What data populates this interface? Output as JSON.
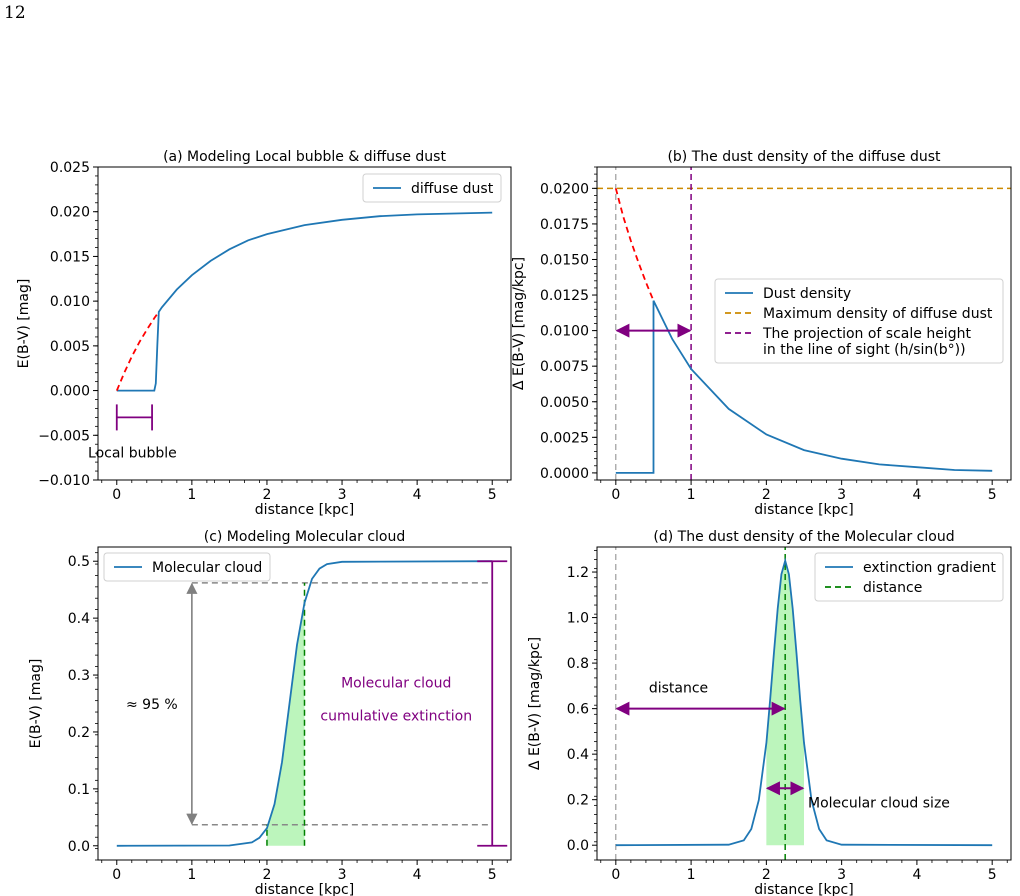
{
  "page_number": "12",
  "chart_data": [
    {
      "type": "line",
      "title": "(a) Modeling Local bubble & diffuse dust",
      "xlabel": "distance [kpc]",
      "ylabel": "E(B-V) [mag]",
      "xlim": [
        -0.25,
        5.25
      ],
      "ylim": [
        -0.01,
        0.025
      ],
      "xticks": [
        0,
        1,
        2,
        3,
        4,
        5
      ],
      "xtick_labels": [
        "0",
        "1",
        "2",
        "3",
        "4",
        "5"
      ],
      "yticks": [
        -0.01,
        -0.005,
        0.0,
        0.005,
        0.01,
        0.015,
        0.02,
        0.025
      ],
      "ytick_labels": [
        "−0.010",
        "−0.005",
        "0.000",
        "0.005",
        "0.010",
        "0.015",
        "0.020",
        "0.025"
      ],
      "legend": {
        "position": "top-right",
        "entries": [
          {
            "label": "diffuse dust",
            "color": "#1f77b4",
            "style": "solid"
          }
        ]
      },
      "series": [
        {
          "name": "diffuse dust",
          "color": "#1f77b4",
          "style": "solid",
          "x": [
            0,
            0.5,
            0.52,
            0.54,
            0.56,
            0.6,
            0.8,
            1.0,
            1.25,
            1.5,
            1.75,
            2.0,
            2.5,
            3.0,
            3.5,
            4.0,
            4.5,
            5.0
          ],
          "y": [
            0,
            0,
            0.0008,
            0.005,
            0.0088,
            0.0093,
            0.0113,
            0.0129,
            0.0145,
            0.0158,
            0.0168,
            0.0175,
            0.0185,
            0.0191,
            0.0195,
            0.0197,
            0.0198,
            0.0199
          ]
        },
        {
          "color": "#ff0000",
          "style": "dashed",
          "x": [
            0,
            0.1,
            0.2,
            0.3,
            0.4,
            0.5,
            0.56
          ],
          "y": [
            0,
            0.002,
            0.0038,
            0.0054,
            0.0068,
            0.0081,
            0.0088
          ]
        }
      ],
      "annotations": [
        {
          "type": "interval",
          "x0": 0,
          "x1": 0.47,
          "y": -0.003,
          "color": "#800080",
          "text": "Local bubble"
        }
      ]
    },
    {
      "type": "line",
      "title": "(b) The dust density of the diffuse dust",
      "xlabel": "distance [kpc]",
      "ylabel": "Δ E(B-V) [mag/kpc]",
      "xlim": [
        -0.25,
        5.25
      ],
      "ylim": [
        -0.0005,
        0.0215
      ],
      "xticks": [
        0,
        1,
        2,
        3,
        4,
        5
      ],
      "xtick_labels": [
        "0",
        "1",
        "2",
        "3",
        "4",
        "5"
      ],
      "yticks": [
        0,
        0.0025,
        0.005,
        0.0075,
        0.01,
        0.0125,
        0.015,
        0.0175,
        0.02
      ],
      "ytick_labels": [
        "0.0000",
        "0.0025",
        "0.0050",
        "0.0075",
        "0.0100",
        "0.0125",
        "0.0150",
        "0.0175",
        "0.0200"
      ],
      "legend": {
        "position": "center-right",
        "entries": [
          {
            "label": "Dust density",
            "color": "#1f77b4",
            "style": "solid"
          },
          {
            "label": "Maximum density of diffuse dust",
            "color": "#cc8a00",
            "style": "dashed"
          },
          {
            "label": "The projection of scale height",
            "label2": "in the line of sight (h/sin(b°))",
            "color": "#800080",
            "style": "dashed"
          }
        ]
      },
      "series": [
        {
          "name": "Dust density",
          "color": "#1f77b4",
          "style": "solid",
          "x": [
            0,
            0.5,
            0.5,
            0.75,
            1.0,
            1.5,
            2.0,
            2.5,
            3.0,
            3.5,
            4.0,
            4.5,
            5.0
          ],
          "y": [
            0,
            0,
            0.0121,
            0.0094,
            0.0073,
            0.0045,
            0.0027,
            0.0016,
            0.001,
            0.0006,
            0.0004,
            0.0002,
            0.00015
          ]
        },
        {
          "color": "#ff0000",
          "style": "dashed",
          "x": [
            0,
            0.1,
            0.2,
            0.3,
            0.4,
            0.5
          ],
          "y": [
            0.02,
            0.018,
            0.0163,
            0.0148,
            0.0134,
            0.0121
          ]
        }
      ],
      "hlines": [
        {
          "y": 0.02,
          "color": "#cc8a00",
          "style": "dashed"
        }
      ],
      "vlines": [
        {
          "x": 0,
          "color": "#888888",
          "style": "dashed"
        },
        {
          "x": 1,
          "color": "#800080",
          "style": "dashed"
        }
      ],
      "annotations": [
        {
          "type": "double-arrow",
          "x0": 0,
          "x1": 1,
          "y": 0.01,
          "color": "#800080"
        }
      ]
    },
    {
      "type": "line",
      "title": "(c) Modeling Molecular cloud",
      "xlabel": "distance [kpc]",
      "ylabel": "E(B-V) [mag]",
      "xlim": [
        -0.25,
        5.25
      ],
      "ylim": [
        -0.025,
        0.525
      ],
      "xticks": [
        0,
        1,
        2,
        3,
        4,
        5
      ],
      "xtick_labels": [
        "0",
        "1",
        "2",
        "3",
        "4",
        "5"
      ],
      "yticks": [
        0,
        0.1,
        0.2,
        0.3,
        0.4,
        0.5
      ],
      "ytick_labels": [
        "0.0",
        "0.1",
        "0.2",
        "0.3",
        "0.4",
        "0.5"
      ],
      "legend": {
        "position": "top-left",
        "entries": [
          {
            "label": "Molecular cloud",
            "color": "#1f77b4",
            "style": "solid"
          }
        ]
      },
      "series": [
        {
          "name": "Molecular cloud",
          "color": "#1f77b4",
          "style": "solid",
          "x": [
            0,
            1.5,
            1.8,
            1.9,
            2.0,
            2.1,
            2.2,
            2.3,
            2.4,
            2.5,
            2.6,
            2.7,
            2.8,
            3.0,
            5.0
          ],
          "y": [
            0,
            0.0005,
            0.006,
            0.014,
            0.031,
            0.073,
            0.147,
            0.25,
            0.353,
            0.427,
            0.469,
            0.487,
            0.495,
            0.499,
            0.5
          ]
        }
      ],
      "fill_between": {
        "x0": 2.0,
        "x1": 2.5,
        "color": "#90ee90"
      },
      "hlines": [
        {
          "y": 0.037,
          "x0": 1.0,
          "x1": 5.0,
          "color": "#888888",
          "style": "dashed"
        },
        {
          "y": 0.462,
          "x0": 1.0,
          "x1": 5.0,
          "color": "#888888",
          "style": "dashed"
        }
      ],
      "vlines": [
        {
          "x": 2.0,
          "y0": 0,
          "y1": 0.037,
          "color": "#008000",
          "style": "dashed"
        },
        {
          "x": 2.5,
          "y0": 0,
          "y1": 0.462,
          "color": "#008000",
          "style": "dashed"
        }
      ],
      "annotations": [
        {
          "type": "double-arrow-vertical",
          "x": 1.0,
          "y0": 0.037,
          "y1": 0.462,
          "color": "#808080",
          "text": "≈ 95 %"
        },
        {
          "type": "interval-vertical",
          "x": 5.0,
          "y0": 0,
          "y1": 0.5,
          "color": "#800080",
          "text": "Molecular cloud",
          "text2": "cumulative extinction"
        }
      ]
    },
    {
      "type": "line",
      "title": "(d) The dust density of the Molecular cloud",
      "xlabel": "distance [kpc]",
      "ylabel": "Δ E(B-V) [mag/kpc]",
      "xlim": [
        -0.25,
        5.25
      ],
      "ylim": [
        -0.065,
        1.31
      ],
      "xticks": [
        0,
        1,
        2,
        3,
        4,
        5
      ],
      "xtick_labels": [
        "0",
        "1",
        "2",
        "3",
        "4",
        "5"
      ],
      "yticks": [
        0,
        0.2,
        0.4,
        0.6,
        0.8,
        1.0,
        1.2
      ],
      "ytick_labels": [
        "0.0",
        "0.2",
        "0.4",
        "0.6",
        "0.8",
        "1.0",
        "1.2"
      ],
      "legend": {
        "position": "top-right",
        "entries": [
          {
            "label": "extinction gradient",
            "color": "#1f77b4",
            "style": "solid"
          },
          {
            "label": "distance",
            "color": "#008000",
            "style": "dashed"
          }
        ]
      },
      "series": [
        {
          "name": "extinction gradient",
          "color": "#1f77b4",
          "style": "solid",
          "x": [
            0,
            1.5,
            1.7,
            1.8,
            1.9,
            2.0,
            2.05,
            2.1,
            2.15,
            2.2,
            2.25,
            2.3,
            2.35,
            2.4,
            2.45,
            2.5,
            2.6,
            2.7,
            2.8,
            3.0,
            5.0
          ],
          "y": [
            0,
            0.002,
            0.021,
            0.071,
            0.198,
            0.45,
            0.637,
            0.843,
            1.039,
            1.19,
            1.25,
            1.19,
            1.039,
            0.843,
            0.637,
            0.45,
            0.198,
            0.071,
            0.021,
            0.002,
            0
          ]
        }
      ],
      "fill_between": {
        "x0": 2.0,
        "x1": 2.5,
        "color": "#90ee90"
      },
      "vlines": [
        {
          "x": 0,
          "color": "#888888",
          "style": "dashed"
        },
        {
          "x": 2.25,
          "color": "#008000",
          "style": "dashed"
        }
      ],
      "annotations": [
        {
          "type": "double-arrow",
          "x0": 0,
          "x1": 2.25,
          "y": 0.6,
          "color": "#800080",
          "text": "distance"
        },
        {
          "type": "double-arrow",
          "x0": 2.0,
          "x1": 2.5,
          "y": 0.25,
          "color": "#800080",
          "text": "Molecular cloud size"
        }
      ]
    }
  ]
}
